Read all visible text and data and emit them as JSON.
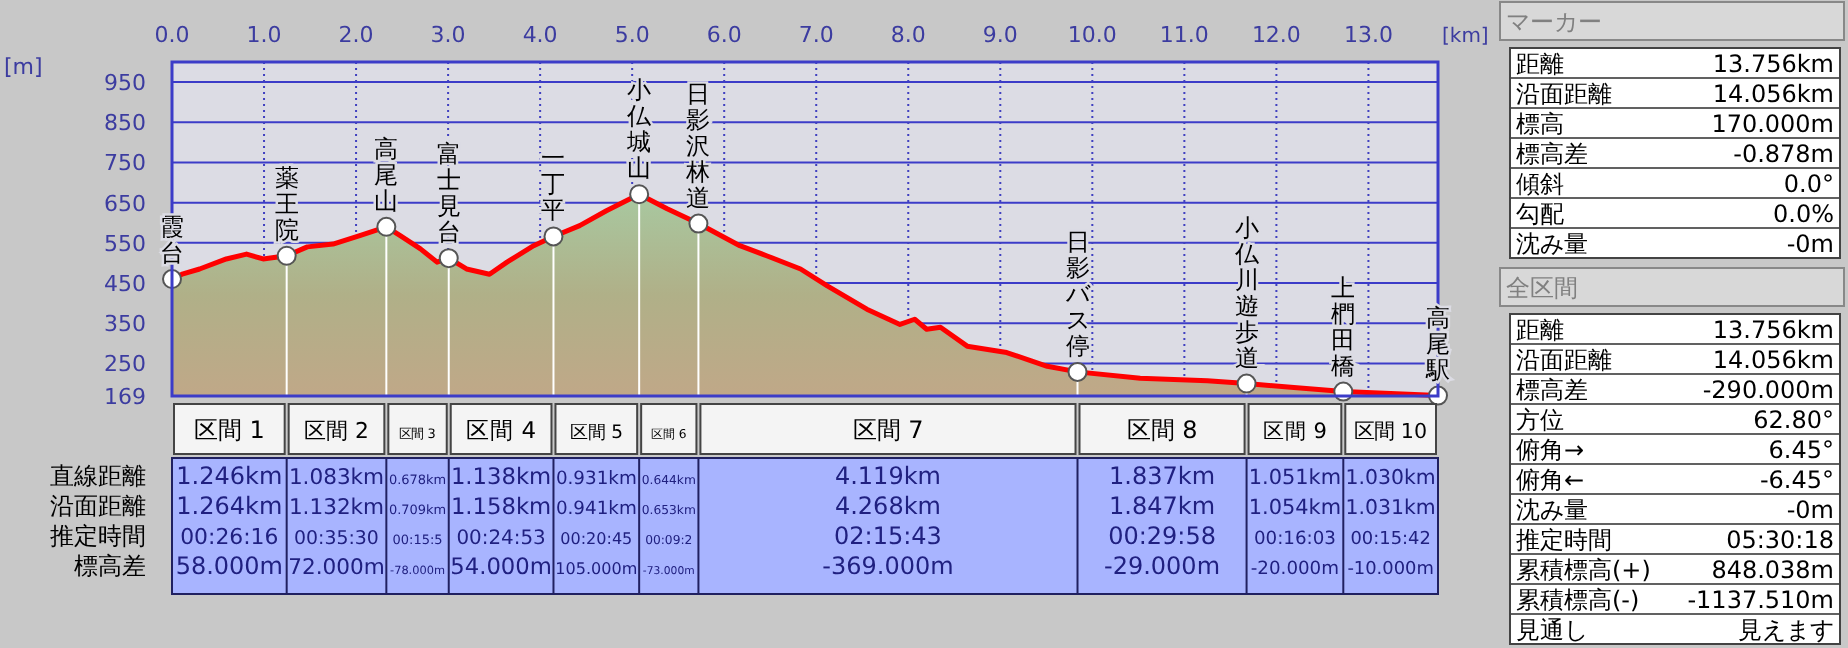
{
  "chart_data": [
    {
      "type": "area",
      "xlabel": "[km]",
      "ylabel": "[m]",
      "xlim": [
        0,
        13.756
      ],
      "ylim": [
        169,
        1000
      ],
      "xticks": [
        {
          "value": 0,
          "label": "0.0"
        },
        {
          "value": 1,
          "label": "1.0"
        },
        {
          "value": 2,
          "label": "2.0"
        },
        {
          "value": 3,
          "label": "3.0"
        },
        {
          "value": 4,
          "label": "4.0"
        },
        {
          "value": 5,
          "label": "5.0"
        },
        {
          "value": 6,
          "label": "6.0"
        },
        {
          "value": 7,
          "label": "7.0"
        },
        {
          "value": 8,
          "label": "8.0"
        },
        {
          "value": 9,
          "label": "9.0"
        },
        {
          "value": 10,
          "label": "10.0"
        },
        {
          "value": 11,
          "label": "11.0"
        },
        {
          "value": 12,
          "label": "12.0"
        },
        {
          "value": 13,
          "label": "13.0"
        }
      ],
      "yticks": [
        169,
        250,
        350,
        450,
        550,
        650,
        750,
        850,
        950
      ],
      "grid": true,
      "series": [
        {
          "type": "area",
          "color": "#ff0000",
          "x": [
            0,
            0.12,
            0.3,
            0.59,
            0.81,
            0.99,
            1.246,
            1.47,
            1.75,
            2.04,
            2.329,
            2.48,
            2.7,
            2.88,
            3.007,
            3.2,
            3.45,
            3.64,
            3.93,
            4.145,
            4.43,
            4.72,
            5.076,
            5.38,
            5.72,
            6.17,
            6.46,
            6.83,
            7.12,
            7.55,
            7.91,
            8.07,
            8.2,
            8.35,
            8.64,
            9.07,
            9.51,
            9.839,
            10.52,
            11.25,
            11.676,
            12.19,
            12.727,
            13.756
          ],
          "values": [
            460,
            473,
            485,
            510,
            522,
            510,
            518,
            540,
            547,
            568,
            590,
            568,
            535,
            502,
            512,
            485,
            472,
            502,
            543,
            566,
            593,
            630,
            671,
            635,
            598,
            543,
            518,
            485,
            443,
            385,
            347,
            360,
            335,
            340,
            293,
            277,
            243,
            229,
            213,
            207,
            200,
            190,
            180,
            170
          ]
        },
        {
          "type": "lollipop",
          "color": "#ffffff",
          "marker": "circle",
          "x": [
            0,
            1.246,
            2.329,
            3.007,
            4.145,
            5.076,
            5.72,
            9.839,
            11.676,
            12.727,
            13.756
          ],
          "values": [
            460,
            518,
            590,
            512,
            566,
            671,
            598,
            229,
            200,
            180,
            170
          ]
        }
      ],
      "annotations": [
        {
          "text": "霞台",
          "x": 0,
          "y": 460
        },
        {
          "text": "薬王院",
          "x": 1.246,
          "y": 518
        },
        {
          "text": "高尾山",
          "x": 2.329,
          "y": 590
        },
        {
          "text": "富士見台",
          "x": 3.007,
          "y": 512
        },
        {
          "text": "一丁平",
          "x": 4.145,
          "y": 566
        },
        {
          "text": "小仏城山",
          "x": 5.076,
          "y": 671
        },
        {
          "text": "日影沢林道",
          "x": 5.72,
          "y": 598
        },
        {
          "text": "日影バス停",
          "x": 9.839,
          "y": 229
        },
        {
          "text": "小仏川遊歩道",
          "x": 11.676,
          "y": 200
        },
        {
          "text": "上椚田橋",
          "x": 12.727,
          "y": 180
        },
        {
          "text": "高尾駅",
          "x": 13.756,
          "y": 170
        }
      ]
    },
    {
      "type": "other",
      "categories": [
        "区間 1",
        "区間 2",
        "区間 3",
        "区間 4",
        "区間 5",
        "区間 6",
        "区間 7",
        "区間 8",
        "区間 9",
        "区間 10"
      ],
      "y_categories": [
        "直線距離",
        "沿面距離",
        "推定時間",
        "標高差"
      ],
      "cell_labels": [
        [
          "1.246km",
          "1.083km",
          "0.678km",
          "1.138km",
          "0.931km",
          "0.644km",
          "4.119km",
          "1.837km",
          "1.051km",
          "1.030km"
        ],
        [
          "1.264km",
          "1.132km",
          "0.709km",
          "1.158km",
          "0.941km",
          "0.653km",
          "4.268km",
          "1.847km",
          "1.054km",
          "1.031km"
        ],
        [
          "00:26:16",
          "00:35:30",
          "00:15:5",
          "00:24:53",
          "00:20:45",
          "00:09:2",
          "02:15:43",
          "00:29:58",
          "00:16:03",
          "00:15:42"
        ],
        [
          "58.000m",
          "72.000m",
          "-78.000m",
          "54.000m",
          "105.000m",
          "-73.000m",
          "-369.000m",
          "-29.000m",
          "-20.000m",
          "-10.000m"
        ]
      ]
    },
    {
      "type": "other",
      "title": "マーカー",
      "y_categories": [
        "距離",
        "沿面距離",
        "標高",
        "標高差",
        "傾斜",
        "勾配",
        "沈み量"
      ],
      "cell_labels": [
        [
          "13.756km"
        ],
        [
          "14.056km"
        ],
        [
          "170.000m"
        ],
        [
          "-0.878m"
        ],
        [
          "0.0°"
        ],
        [
          "0.0%"
        ],
        [
          "-0m"
        ]
      ]
    },
    {
      "type": "other",
      "title": "全区間",
      "y_categories": [
        "距離",
        "沿面距離",
        "標高差",
        "方位",
        "俯角→",
        "俯角←",
        "沈み量",
        "推定時間",
        "累積標高(+)",
        "累積標高(-)",
        "見通し"
      ],
      "cell_labels": [
        [
          "13.756km"
        ],
        [
          "14.056km"
        ],
        [
          "-290.000m"
        ],
        [
          "62.80°"
        ],
        [
          "6.45°"
        ],
        [
          "-6.45°"
        ],
        [
          "-0m"
        ],
        [
          "05:30:18"
        ],
        [
          "848.038m"
        ],
        [
          "-1137.510m"
        ],
        [
          "見えます"
        ]
      ]
    }
  ]
}
